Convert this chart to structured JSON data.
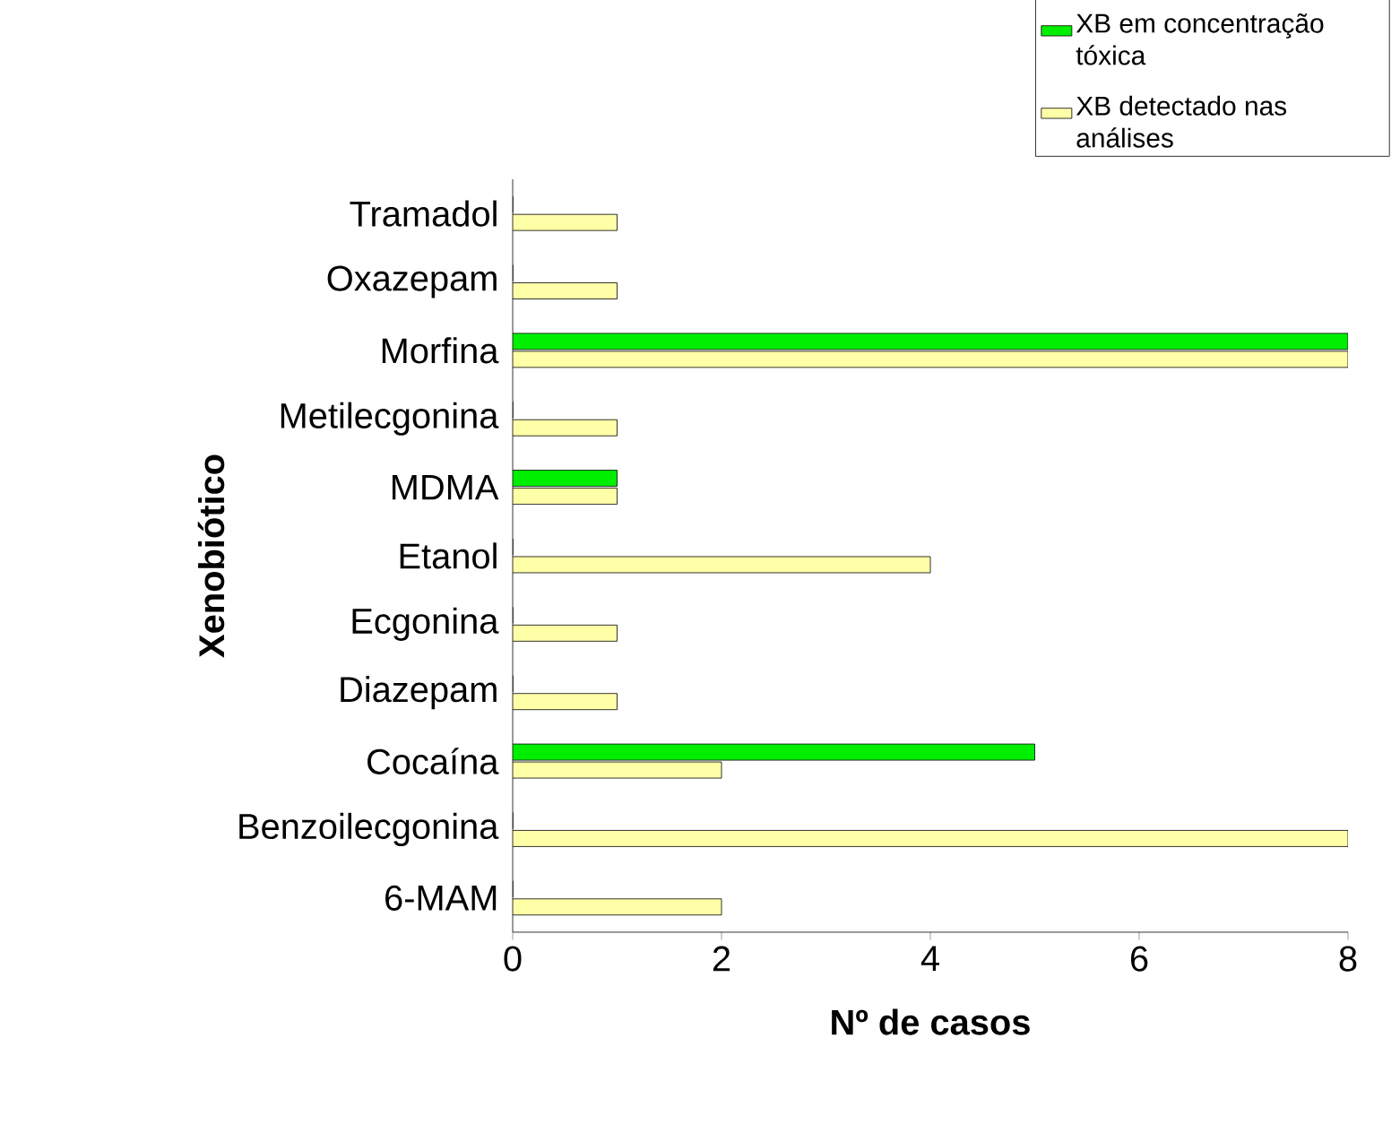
{
  "chart_data": {
    "type": "bar",
    "orientation": "horizontal",
    "xlabel": "Nº de casos",
    "ylabel": "Xenobiótico",
    "categories": [
      "Tramadol",
      "Oxazepam",
      "Morfina",
      "Metilecgonina",
      "MDMA",
      "Etanol",
      "Ecgonina",
      "Diazepam",
      "Cocaína",
      "Benzoilecgonina",
      "6-MAM"
    ],
    "series": [
      {
        "name": "XB em concentração tóxica",
        "color": "#00ee00",
        "values": [
          0,
          0,
          8,
          0,
          1,
          0,
          0,
          0,
          5,
          0,
          0
        ]
      },
      {
        "name": "XB detectado nas análises",
        "color": "#ffffa8",
        "values": [
          1,
          1,
          8,
          1,
          1,
          4,
          1,
          1,
          2,
          8,
          2
        ]
      }
    ],
    "xlim": [
      0,
      8
    ],
    "xticks": [
      0,
      2,
      4,
      6,
      8
    ],
    "grid": false,
    "legend": "top right"
  }
}
